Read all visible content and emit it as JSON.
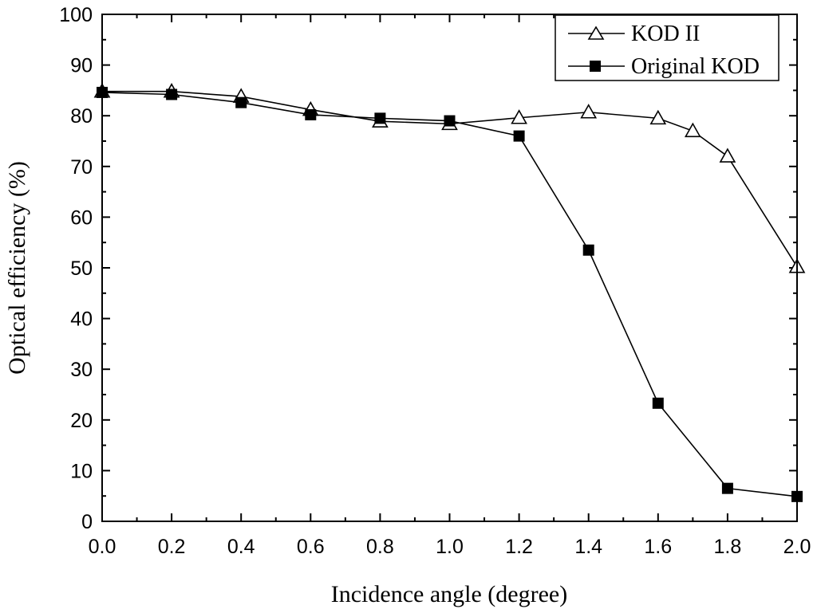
{
  "chart_data": {
    "type": "line",
    "title": "",
    "xlabel": "Incidence angle (degree)",
    "ylabel": "Optical efficiency (%)",
    "xlim": [
      0,
      2.0
    ],
    "ylim": [
      0,
      100
    ],
    "xticks": [
      "0.0",
      "0.2",
      "0.4",
      "0.6",
      "0.8",
      "1.0",
      "1.2",
      "1.4",
      "1.6",
      "1.8",
      "2.0"
    ],
    "yticks": [
      "0",
      "10",
      "20",
      "30",
      "40",
      "50",
      "60",
      "70",
      "80",
      "90",
      "100"
    ],
    "grid": false,
    "legend_position": "top-right",
    "series": [
      {
        "name": "KOD II",
        "marker": "open-triangle",
        "x": [
          0.0,
          0.2,
          0.4,
          0.6,
          0.8,
          1.0,
          1.2,
          1.4,
          1.6,
          1.7,
          1.8,
          2.0
        ],
        "y": [
          84.8,
          84.8,
          83.8,
          81.2,
          78.9,
          78.4,
          79.6,
          80.7,
          79.5,
          77.0,
          72.0,
          50.2
        ]
      },
      {
        "name": "Original KOD",
        "marker": "filled-square",
        "x": [
          0.0,
          0.2,
          0.4,
          0.6,
          0.8,
          1.0,
          1.2,
          1.4,
          1.6,
          1.8,
          2.0
        ],
        "y": [
          84.6,
          84.2,
          82.6,
          80.2,
          79.5,
          79.0,
          76.0,
          53.5,
          23.3,
          6.5,
          4.9
        ]
      }
    ]
  }
}
